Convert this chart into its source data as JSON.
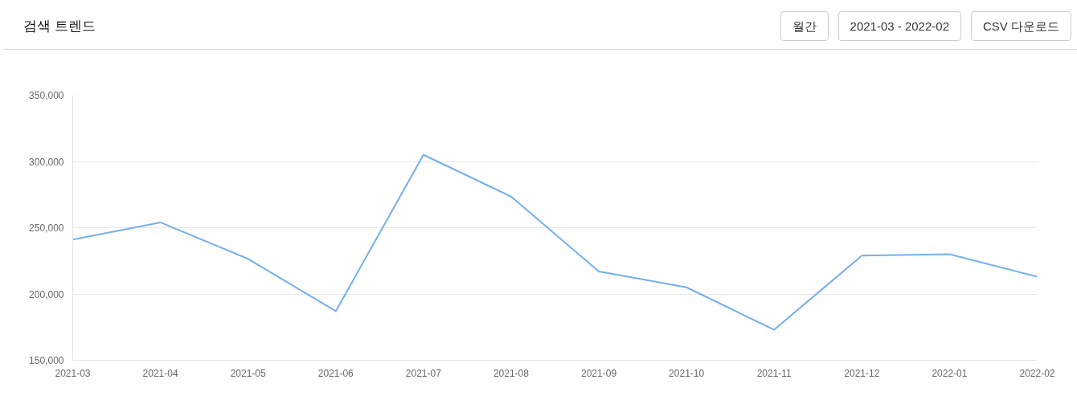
{
  "chart_data": {
    "type": "line",
    "title": "검색 트렌드",
    "annotations": [
      "월간",
      "2021-03 - 2022-02",
      "CSV 다운로드"
    ],
    "categories": [
      "2021-03",
      "2021-04",
      "2021-05",
      "2021-06",
      "2021-07",
      "2021-08",
      "2021-09",
      "2021-10",
      "2021-11",
      "2021-12",
      "2022-01",
      "2022-02"
    ],
    "series": [
      {
        "color": "#74aff0",
        "values": [
          241000,
          254000,
          226500,
          187000,
          305000,
          273500,
          217000,
          205000,
          173000,
          229000,
          230000,
          213000
        ]
      }
    ],
    "ylim": [
      150000,
      350000
    ],
    "yticks": [
      {
        "value": 150000,
        "label": "150,000"
      },
      {
        "value": 200000,
        "label": "200,000"
      },
      {
        "value": 250000,
        "label": "250,000"
      },
      {
        "value": 300000,
        "label": "300,000"
      },
      {
        "value": 350000,
        "label": "350,000"
      }
    ],
    "grid": "y",
    "marker": "none",
    "line_style": "solid"
  }
}
